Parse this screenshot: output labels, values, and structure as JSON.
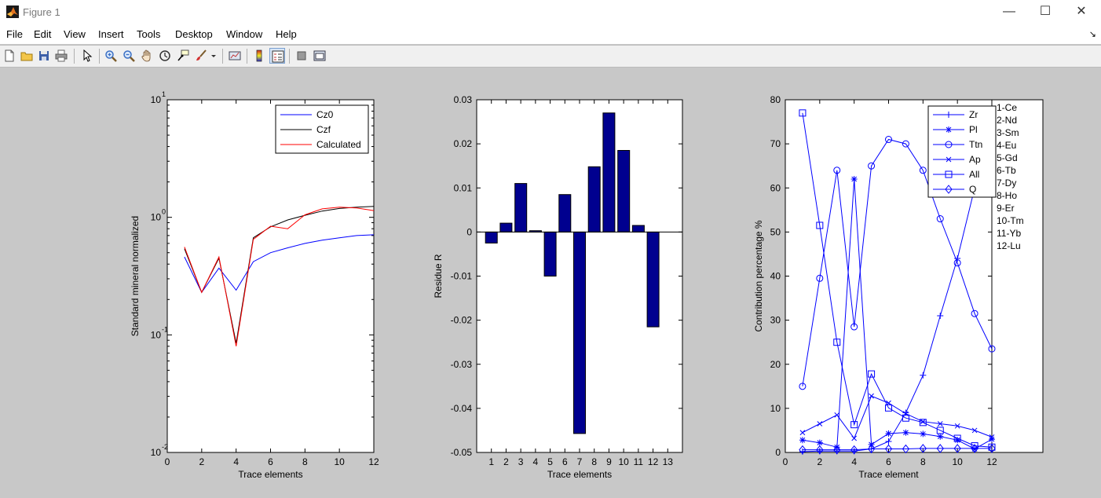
{
  "window": {
    "title": "Figure 1",
    "controls": {
      "minimize": "—",
      "maximize": "☐",
      "close": "✕"
    }
  },
  "menu": {
    "items": [
      "File",
      "Edit",
      "View",
      "Insert",
      "Tools",
      "Desktop",
      "Window",
      "Help"
    ]
  },
  "toolbar": {
    "buttons": [
      {
        "name": "new-figure",
        "icon": "new-file-icon"
      },
      {
        "name": "open-file",
        "icon": "open-folder-icon"
      },
      {
        "name": "save-figure",
        "icon": "save-icon"
      },
      {
        "name": "print-figure",
        "icon": "print-icon"
      },
      {
        "name": "edit-plot",
        "icon": "arrow-cursor-icon"
      },
      {
        "name": "zoom-in",
        "icon": "zoom-in-icon"
      },
      {
        "name": "zoom-out",
        "icon": "zoom-out-icon"
      },
      {
        "name": "pan",
        "icon": "hand-icon"
      },
      {
        "name": "rotate-3d",
        "icon": "rotate-3d-icon"
      },
      {
        "name": "data-cursor",
        "icon": "data-cursor-icon"
      },
      {
        "name": "brush",
        "icon": "brush-icon"
      },
      {
        "name": "link-plot",
        "icon": "link-plot-icon"
      },
      {
        "name": "insert-colorbar",
        "icon": "colorbar-icon"
      },
      {
        "name": "insert-legend",
        "icon": "legend-icon",
        "active": true
      },
      {
        "name": "hide-plot-tools",
        "icon": "hide-tools-icon"
      },
      {
        "name": "show-plot-tools",
        "icon": "show-tools-icon"
      }
    ]
  },
  "colors": {
    "plot_blue": "#0000ff",
    "bar_fill": "#00008f",
    "figure_bg": "#c8c8c8"
  },
  "chart_data": [
    {
      "type": "line",
      "yscale": "log",
      "title": "",
      "xlabel": "Trace elements",
      "ylabel": "Standard mineral normalized",
      "xlim": [
        0,
        12
      ],
      "ylim": [
        0.01,
        10
      ],
      "xticks": [
        "0",
        "2",
        "4",
        "6",
        "8",
        "10",
        "12"
      ],
      "yticks": [
        {
          "base": "10",
          "exp": "-2"
        },
        {
          "base": "10",
          "exp": "-1"
        },
        {
          "base": "10",
          "exp": "0"
        },
        {
          "base": "10",
          "exp": "1"
        }
      ],
      "legend": "top-right",
      "x": [
        1,
        2,
        3,
        4,
        5,
        6,
        7,
        8,
        9,
        10,
        11,
        12
      ],
      "series": [
        {
          "name": "Cz0",
          "color": "#0000ff",
          "values": [
            0.46,
            0.23,
            0.37,
            0.24,
            0.42,
            0.5,
            0.55,
            0.6,
            0.64,
            0.67,
            0.7,
            0.71
          ]
        },
        {
          "name": "Czf",
          "color": "#000000",
          "values": [
            0.54,
            0.23,
            0.45,
            0.085,
            0.67,
            0.83,
            0.95,
            1.04,
            1.13,
            1.19,
            1.22,
            1.24
          ]
        },
        {
          "name": "Calculated",
          "color": "#ff0000",
          "values": [
            0.56,
            0.23,
            0.46,
            0.08,
            0.65,
            0.84,
            0.8,
            1.05,
            1.18,
            1.22,
            1.2,
            1.14
          ]
        }
      ]
    },
    {
      "type": "bar",
      "title": "",
      "xlabel": "",
      "ylabel": "Residue R",
      "categories": [
        "1",
        "2",
        "3",
        "4",
        "5",
        "6",
        "7",
        "8",
        "9",
        "10",
        "11",
        "12",
        "13"
      ],
      "values": [
        -0.0025,
        0.002,
        0.011,
        0.0003,
        -0.01,
        0.0085,
        -0.0457,
        0.0148,
        0.027,
        0.0185,
        0.0015,
        -0.0215,
        null
      ],
      "xlim": [
        0,
        14
      ],
      "ylim": [
        -0.05,
        0.03
      ],
      "yticks": [
        "0.03",
        "0.02",
        "0.01",
        "0",
        "-0.01",
        "-0.02",
        "-0.03",
        "-0.04",
        "-0.05"
      ],
      "annotation": "Trace elements"
    },
    {
      "type": "line",
      "title": "",
      "xlabel": "Trace element",
      "ylabel": "Contribution percentage %",
      "xlim": [
        0,
        12
      ],
      "ylim": [
        0,
        80
      ],
      "xticks": [
        "0",
        "2",
        "4",
        "6",
        "8",
        "10",
        "12"
      ],
      "yticks": [
        "0",
        "10",
        "20",
        "30",
        "40",
        "50",
        "60",
        "70",
        "80"
      ],
      "legend": "top-right",
      "x": [
        1,
        2,
        3,
        4,
        5,
        6,
        7,
        8,
        9,
        10,
        11,
        12
      ],
      "series": [
        {
          "name": "Zr",
          "marker": "+",
          "values": [
            0.2,
            0.3,
            0.3,
            0.3,
            0.8,
            2.5,
            9.0,
            17.5,
            31.0,
            44.0,
            60.0,
            70.0
          ]
        },
        {
          "name": "Pl",
          "marker": "*",
          "values": [
            2.8,
            2.2,
            1.2,
            62.0,
            1.8,
            4.3,
            4.5,
            4.2,
            3.6,
            2.8,
            0.8,
            3.0
          ]
        },
        {
          "name": "Ttn",
          "marker": "o",
          "values": [
            15.0,
            39.5,
            64.0,
            28.5,
            65.0,
            71.0,
            70.0,
            64.0,
            53.0,
            43.0,
            31.5,
            23.5
          ]
        },
        {
          "name": "Ap",
          "marker": "x",
          "values": [
            4.5,
            6.5,
            8.5,
            3.2,
            12.8,
            11.2,
            8.8,
            7.0,
            6.5,
            6.0,
            5.0,
            3.5
          ]
        },
        {
          "name": "All",
          "marker": "square",
          "values": [
            77.0,
            51.5,
            25.0,
            6.3,
            17.8,
            10.1,
            7.8,
            6.8,
            5.0,
            3.2,
            1.5,
            1.2
          ]
        },
        {
          "name": "Q",
          "marker": "diamond",
          "values": [
            0.6,
            0.6,
            0.6,
            0.6,
            0.8,
            0.8,
            0.8,
            0.9,
            0.9,
            0.9,
            0.9,
            0.9
          ]
        }
      ],
      "side_labels": [
        "1-Ce",
        "2-Nd",
        "3-Sm",
        "4-Eu",
        "5-Gd",
        "6-Tb",
        "7-Dy",
        "8-Ho",
        "9-Er",
        "10-Tm",
        "11-Yb",
        "12-Lu"
      ]
    }
  ]
}
